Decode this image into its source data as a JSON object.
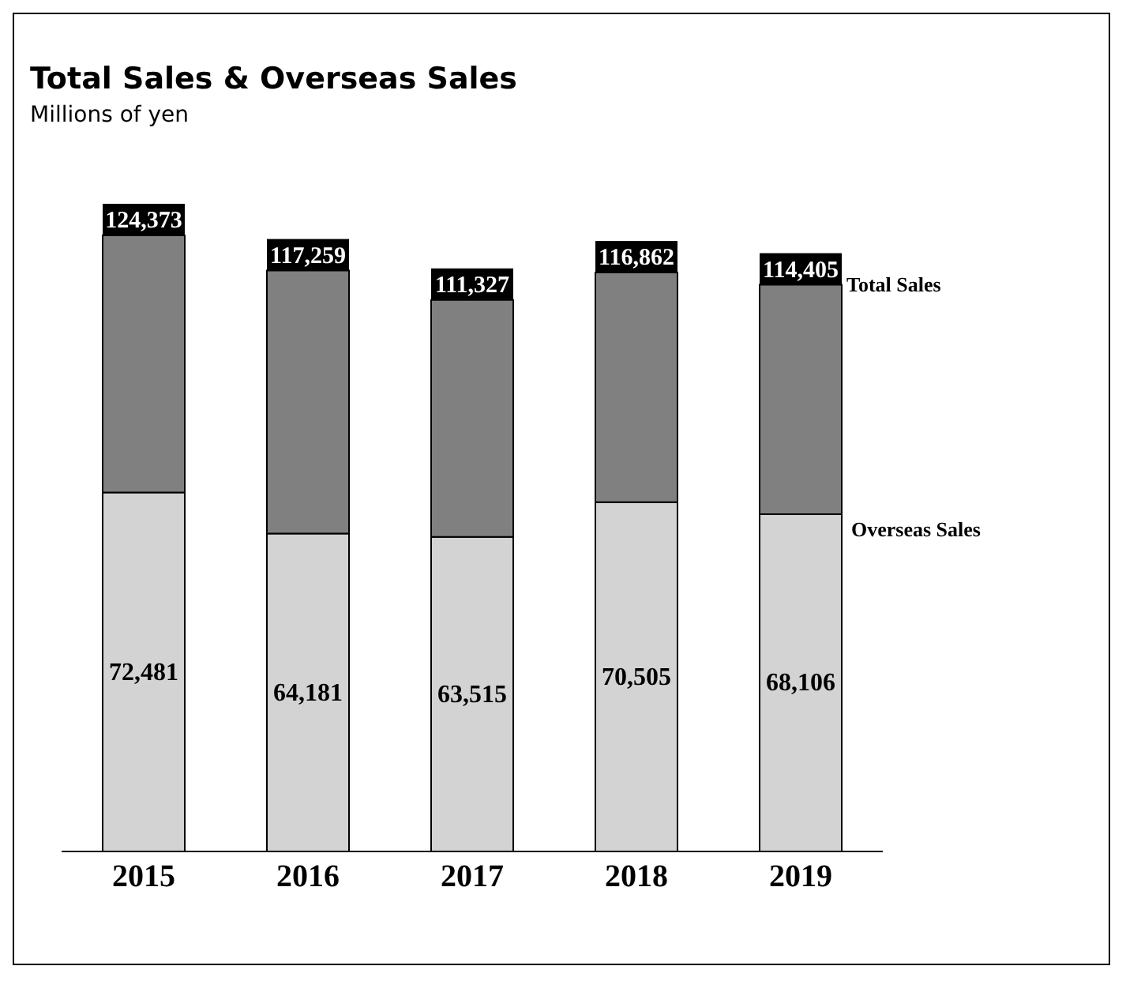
{
  "chart_data": {
    "type": "bar",
    "title": "Total Sales & Overseas Sales",
    "subtitle": "Millions of yen",
    "categories": [
      "2015",
      "2016",
      "2017",
      "2018",
      "2019"
    ],
    "stacked": true,
    "series": [
      {
        "name": "Overseas Sales",
        "color": "#d3d3d3",
        "values": [
          72481,
          64181,
          63515,
          70505,
          68106
        ],
        "value_labels": [
          "72,481",
          "64,181",
          "63,515",
          "70,505",
          "68,106"
        ]
      },
      {
        "color": "#808080",
        "values": [
          51892,
          53078,
          47812,
          46357,
          46299
        ]
      }
    ],
    "totals": [
      "124,373",
      "117,259",
      "111,327",
      "116,862",
      "114,405"
    ],
    "annotations": [
      {
        "text": "Total Sales",
        "x": "2019",
        "y": 114405
      }
    ],
    "legend": false,
    "grid": false
  }
}
